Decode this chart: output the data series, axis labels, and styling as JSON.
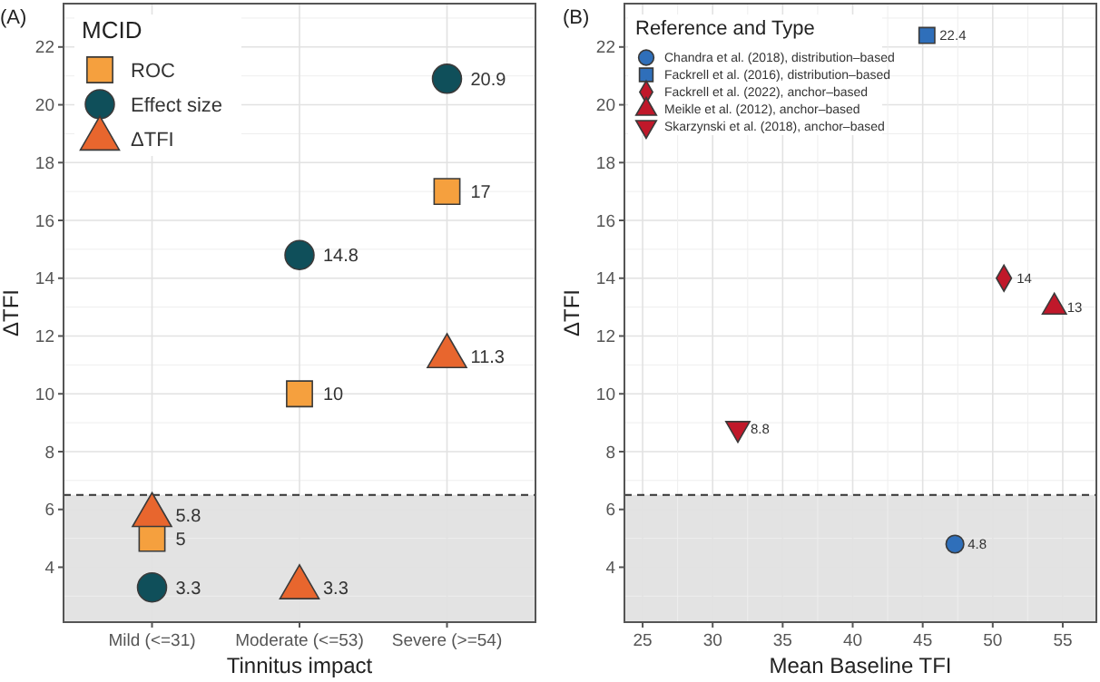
{
  "chart_data": [
    {
      "type": "scatter",
      "annotations": [
        "(A)"
      ],
      "xlabel": "Tinnitus impact",
      "ylabel": "ΔTFI",
      "legend_title": "MCID",
      "legend": "top left",
      "grid": true,
      "data_labels": true,
      "categories": [
        "Mild (<=31)",
        "Moderate (<=53)",
        "Severe (>=54)"
      ],
      "ylim": [
        2.1,
        23.5
      ],
      "yticks": [
        4,
        6,
        8,
        10,
        12,
        14,
        16,
        18,
        20,
        22
      ],
      "ref_lines": [
        {
          "axis": "y",
          "value": 6.5,
          "line_style": "dashed",
          "color": "#333333"
        }
      ],
      "bands": [
        {
          "axis": "y",
          "from": 2.1,
          "to": 6.5,
          "color": "#e3e3e3"
        }
      ],
      "series": [
        {
          "name": "ROC",
          "color": "#f5a03e",
          "marker": "square",
          "values": [
            5,
            10,
            17
          ]
        },
        {
          "name": "Effect size",
          "color": "#0f4f5a",
          "marker": "circle",
          "values": [
            3.3,
            14.8,
            20.9
          ]
        },
        {
          "name": "ΔTFI",
          "color": "#e8662e",
          "marker": "triangle",
          "values": [
            5.8,
            3.3,
            11.3
          ]
        }
      ]
    },
    {
      "type": "scatter",
      "annotations": [
        "(B)"
      ],
      "xlabel": "Mean Baseline TFI",
      "ylabel": "ΔTFI",
      "legend_title": "Reference and Type",
      "legend": "top left",
      "grid": true,
      "data_labels": true,
      "xlim": [
        23.7,
        57.4
      ],
      "xticks": [
        25,
        30,
        35,
        40,
        45,
        50,
        55
      ],
      "ylim": [
        2.1,
        23.5
      ],
      "yticks": [
        4,
        6,
        8,
        10,
        12,
        14,
        16,
        18,
        20,
        22
      ],
      "ref_lines": [
        {
          "axis": "y",
          "value": 6.5,
          "line_style": "dashed",
          "color": "#333333"
        }
      ],
      "bands": [
        {
          "axis": "y",
          "from": 2.1,
          "to": 6.5,
          "color": "#e3e3e3"
        }
      ],
      "series": [
        {
          "name": "Chandra et al. (2018), distribution–based",
          "color": "#2f6fba",
          "marker": "circle",
          "x": [
            47.3
          ],
          "values": [
            4.8
          ]
        },
        {
          "name": "Fackrell et al. (2016), distribution–based",
          "color": "#2f6fba",
          "marker": "square",
          "x": [
            45.3
          ],
          "values": [
            22.4
          ]
        },
        {
          "name": "Fackrell et al. (2022), anchor–based",
          "color": "#c0182a",
          "marker": "diamond",
          "x": [
            50.8
          ],
          "values": [
            14
          ]
        },
        {
          "name": "Meikle et al. (2012), anchor–based",
          "color": "#c0182a",
          "marker": "triangle",
          "x": [
            54.4
          ],
          "values": [
            13
          ]
        },
        {
          "name": "Skarzynski et al. (2018), anchor–based",
          "color": "#c0182a",
          "marker": "triangle-down",
          "x": [
            31.8
          ],
          "values": [
            8.8
          ]
        }
      ]
    }
  ]
}
